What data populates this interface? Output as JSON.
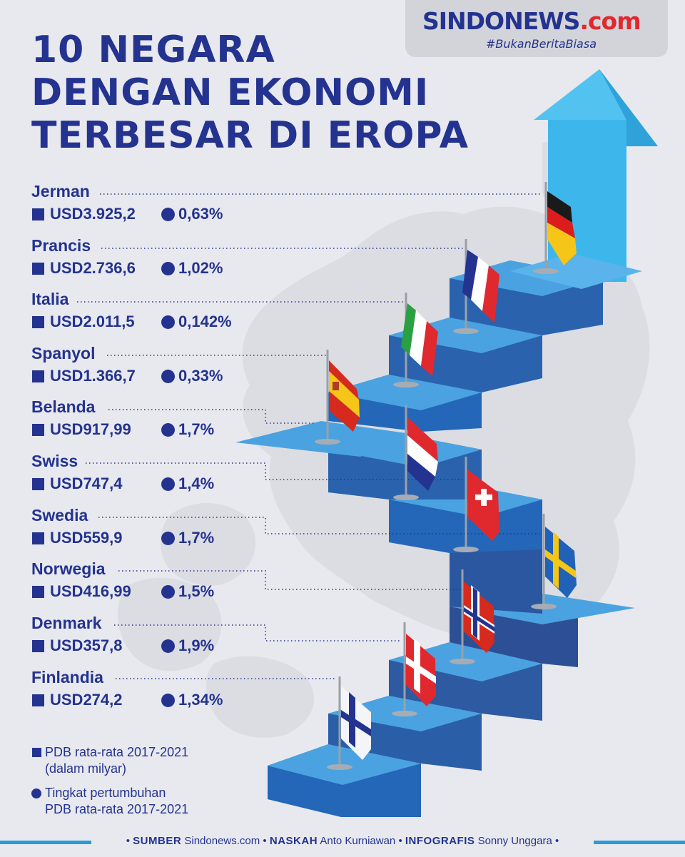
{
  "brand": {
    "name_main": "SINDONEWS",
    "name_suffix": ".com",
    "tagline": "#BukanBeritaBiasa"
  },
  "title": {
    "line1": "10 NEGARA",
    "line2": "DENGAN EKONOMI",
    "line3": "TERBESAR DI EROPA"
  },
  "countries": [
    {
      "name": "Jerman",
      "gdp": "USD3.925,2",
      "growth": "0,63%"
    },
    {
      "name": "Prancis",
      "gdp": "USD2.736,6",
      "growth": "1,02%"
    },
    {
      "name": "Italia",
      "gdp": "USD2.011,5",
      "growth": "0,142%"
    },
    {
      "name": "Spanyol",
      "gdp": "USD1.366,7",
      "growth": "0,33%"
    },
    {
      "name": "Belanda",
      "gdp": "USD917,99",
      "growth": "1,7%"
    },
    {
      "name": "Swiss",
      "gdp": "USD747,4",
      "growth": "1,4%"
    },
    {
      "name": "Swedia",
      "gdp": "USD559,9",
      "growth": "1,7%"
    },
    {
      "name": "Norwegia",
      "gdp": "USD416,99",
      "growth": "1,5%"
    },
    {
      "name": "Denmark",
      "gdp": "USD357,8",
      "growth": "1,9%"
    },
    {
      "name": "Finlandia",
      "gdp": "USD274,2",
      "growth": "1,34%"
    }
  ],
  "legend": {
    "gdp_line1": "PDB rata-rata 2017-2021",
    "gdp_line2": "(dalam milyar)",
    "growth_line1": "Tingkat pertumbuhan",
    "growth_line2": "PDB rata-rata 2017-2021"
  },
  "footer": {
    "source_label": "SUMBER",
    "source_value": "Sindonews.com",
    "script_label": "NASKAH",
    "script_value": "Anto Kurniawan",
    "graphic_label": "INFOGRAFIS",
    "graphic_value": "Sonny Unggara",
    "bullet": "•"
  },
  "colors": {
    "navy": "#24338f",
    "step_top": "#4aa3e0",
    "step_front": "#2466b8",
    "arrow": "#3db6ec",
    "accent_red": "#e0292f",
    "footer_line": "#2a9bd8",
    "background": "#e8e9ee"
  },
  "flag_icons": [
    "flag-germany-icon",
    "flag-france-icon",
    "flag-italy-icon",
    "flag-spain-icon",
    "flag-netherlands-icon",
    "flag-switzerland-icon",
    "flag-sweden-icon",
    "flag-norway-icon",
    "flag-denmark-icon",
    "flag-finland-icon"
  ]
}
